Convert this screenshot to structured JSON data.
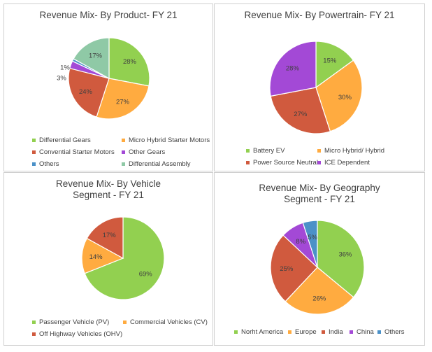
{
  "colors": {
    "green": "#92d050",
    "orange": "#ffab40",
    "red": "#d05a3e",
    "purple": "#a349d6",
    "blue": "#4b91c8",
    "teal": "#8fc9a6"
  },
  "chart_data": [
    {
      "type": "pie",
      "title": "Revenue Mix- By Product- FY 21",
      "slices": [
        {
          "label": "Differential Gears",
          "value": 28,
          "text": "28%",
          "color": "#92d050"
        },
        {
          "label": "Micro Hybrid Starter Motors",
          "value": 27,
          "text": "27%",
          "color": "#ffab40"
        },
        {
          "label": "Convential Starter Motors",
          "value": 24,
          "text": "24%",
          "color": "#d05a3e"
        },
        {
          "label": "Other Gears",
          "value": 3,
          "text": "3%",
          "color": "#a349d6"
        },
        {
          "label": "Others",
          "value": 1,
          "text": "1%",
          "color": "#4b91c8"
        },
        {
          "label": "Differential Assembly",
          "value": 17,
          "text": "17%",
          "color": "#8fc9a6"
        }
      ],
      "legend": [
        "Differential Gears",
        "Micro Hybrid Starter Motors",
        "Convential Starter Motors",
        "Other Gears",
        "Others",
        "Differential Assembly"
      ],
      "legend_position": "bottom"
    },
    {
      "type": "pie",
      "title": "Revenue Mix- By Powertrain- FY 21",
      "slices": [
        {
          "label": "Battery EV",
          "value": 15,
          "text": "15%",
          "color": "#92d050"
        },
        {
          "label": "Micro Hybrid/ Hybrid",
          "value": 30,
          "text": "30%",
          "color": "#ffab40"
        },
        {
          "label": "Power Source Neutral",
          "value": 27,
          "text": "27%",
          "color": "#d05a3e"
        },
        {
          "label": "ICE Dependent",
          "value": 28,
          "text": "28%",
          "color": "#a349d6"
        }
      ],
      "legend": [
        "Battery EV",
        "Micro Hybrid/ Hybrid",
        "Power Source Neutral",
        "ICE Dependent"
      ],
      "legend_position": "bottom"
    },
    {
      "type": "pie",
      "title": "Revenue Mix- By Vehicle Segment - FY 21",
      "slices": [
        {
          "label": "Passenger Vehicle (PV)",
          "value": 69,
          "text": "69%",
          "color": "#92d050"
        },
        {
          "label": "Commercial Vehicles (CV)",
          "value": 14,
          "text": "14%",
          "color": "#ffab40"
        },
        {
          "label": "Off Highway Vehicles (OHV)",
          "value": 17,
          "text": "17%",
          "color": "#d05a3e"
        }
      ],
      "legend": [
        "Passenger Vehicle (PV)",
        "Commercial Vehicles (CV)",
        "Off Highway Vehicles (OHV)"
      ],
      "legend_position": "bottom"
    },
    {
      "type": "pie",
      "title": "Revenue Mix- By Geography Segment - FY 21",
      "slices": [
        {
          "label": "Norht America",
          "value": 36,
          "text": "36%",
          "color": "#92d050"
        },
        {
          "label": "Europe",
          "value": 26,
          "text": "26%",
          "color": "#ffab40"
        },
        {
          "label": "India",
          "value": 25,
          "text": "25%",
          "color": "#d05a3e"
        },
        {
          "label": "China",
          "value": 8,
          "text": "8%",
          "color": "#a349d6"
        },
        {
          "label": "Others",
          "value": 5,
          "text": "5%",
          "color": "#4b91c8"
        }
      ],
      "legend": [
        "Norht America",
        "Europe",
        "India",
        "China",
        "Others"
      ],
      "legend_position": "bottom"
    }
  ]
}
